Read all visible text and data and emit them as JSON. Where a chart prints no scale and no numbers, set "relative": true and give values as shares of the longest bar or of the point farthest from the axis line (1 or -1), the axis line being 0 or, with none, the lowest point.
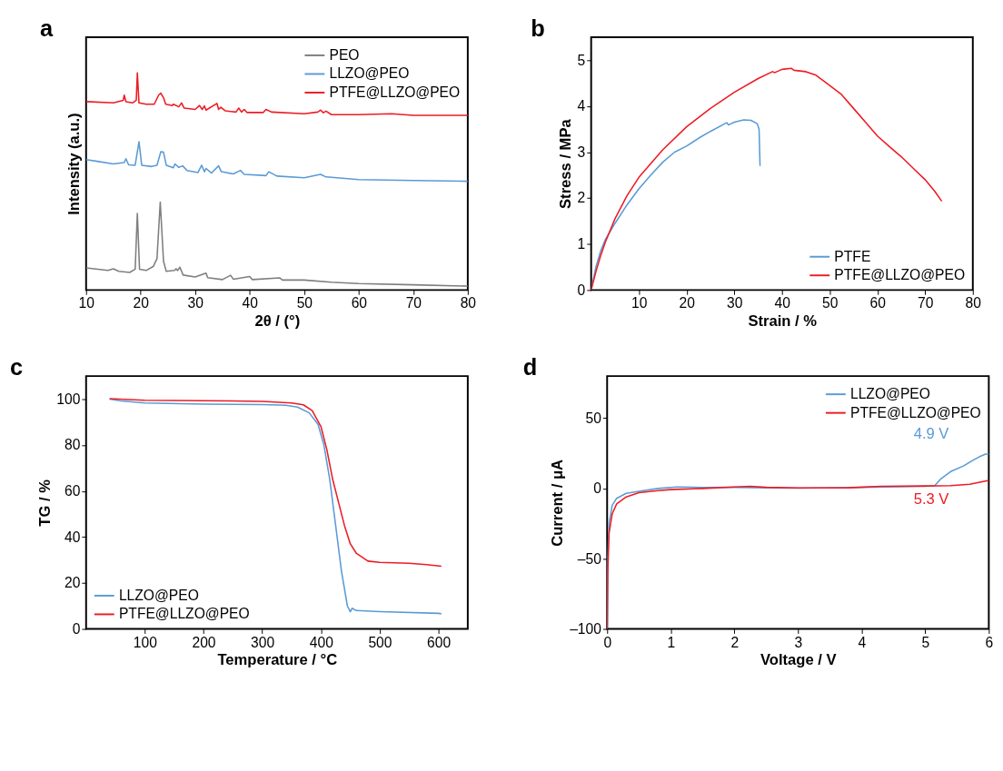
{
  "chart_data": [
    {
      "type": "line",
      "title": "a",
      "xlabel": "2θ / (°)",
      "ylabel": "Intensity (a.u.)",
      "relative": true,
      "legend": "top right",
      "grid": false,
      "xlim": [
        10,
        80
      ],
      "xticks": [
        10,
        20,
        30,
        40,
        50,
        60,
        70,
        80
      ],
      "series": [
        {
          "name": "PEO",
          "color": "#7f7f7f",
          "x": [
            10,
            14,
            15,
            16,
            18,
            19,
            19.4,
            19.8,
            21,
            22.3,
            23,
            23.6,
            24.2,
            24.7,
            26.2,
            26.5,
            26.8,
            27.2,
            27.8,
            30,
            32,
            32.3,
            35,
            36.5,
            37,
            40,
            40.5,
            45.5,
            46,
            50,
            55,
            60,
            70,
            80
          ],
          "values": [
            0.102,
            0.09,
            0.098,
            0.086,
            0.081,
            0.096,
            0.353,
            0.096,
            0.09,
            0.108,
            0.144,
            0.405,
            0.132,
            0.086,
            0.09,
            0.098,
            0.09,
            0.105,
            0.069,
            0.06,
            0.078,
            0.057,
            0.048,
            0.068,
            0.05,
            0.062,
            0.048,
            0.056,
            0.046,
            0.046,
            0.036,
            0.03,
            0.024,
            0.018
          ]
        },
        {
          "name": "LLZO@PEO",
          "color": "#5b9bd5",
          "x": [
            10,
            12,
            15,
            17,
            17.3,
            17.8,
            19,
            19.7,
            20.2,
            22,
            23,
            23.7,
            24.2,
            24.7,
            26,
            26.3,
            27,
            27.7,
            28.5,
            30.5,
            31.2,
            31.7,
            32,
            33,
            34.3,
            34.8,
            37,
            38.3,
            39,
            43,
            43.5,
            45,
            50,
            53,
            54,
            57,
            60,
            70,
            80
          ],
          "values": [
            0.601,
            0.593,
            0.581,
            0.587,
            0.605,
            0.577,
            0.575,
            0.683,
            0.575,
            0.569,
            0.575,
            0.637,
            0.635,
            0.575,
            0.563,
            0.581,
            0.565,
            0.572,
            0.551,
            0.541,
            0.575,
            0.545,
            0.56,
            0.539,
            0.572,
            0.545,
            0.535,
            0.551,
            0.533,
            0.527,
            0.545,
            0.525,
            0.517,
            0.533,
            0.521,
            0.515,
            0.509,
            0.505,
            0.501
          ]
        },
        {
          "name": "PTFE@LLZO@PEO",
          "color": "#ed1c24",
          "x": [
            10,
            15,
            16.8,
            17,
            17.3,
            18.5,
            19.2,
            19.4,
            19.7,
            21,
            22.5,
            23.3,
            23.7,
            24.2,
            24.6,
            25.8,
            26,
            27,
            27.5,
            28,
            30,
            30.8,
            31.3,
            31.7,
            32,
            34,
            34.3,
            34.7,
            35.5,
            37.5,
            38,
            38.5,
            39,
            39.5,
            42.5,
            43,
            44,
            50,
            52.5,
            53,
            53.5,
            54,
            55,
            60,
            66,
            70,
            80
          ],
          "values": [
            0.868,
            0.862,
            0.874,
            0.898,
            0.868,
            0.862,
            0.874,
            1,
            0.862,
            0.856,
            0.856,
            0.898,
            0.907,
            0.886,
            0.856,
            0.85,
            0.856,
            0.844,
            0.862,
            0.838,
            0.832,
            0.85,
            0.832,
            0.848,
            0.829,
            0.86,
            0.832,
            0.842,
            0.826,
            0.82,
            0.838,
            0.82,
            0.832,
            0.818,
            0.818,
            0.832,
            0.82,
            0.812,
            0.82,
            0.829,
            0.817,
            0.824,
            0.808,
            0.808,
            0.812,
            0.805,
            0.805
          ]
        }
      ]
    },
    {
      "type": "line",
      "title": "b",
      "xlabel": "Strain / %",
      "ylabel": "Stress / MPa",
      "legend": "bottom right",
      "grid": false,
      "xlim": [
        0,
        80
      ],
      "xticks": [
        10,
        20,
        30,
        40,
        50,
        60,
        70,
        80
      ],
      "ylim": [
        0,
        5.5
      ],
      "yticks": [
        0,
        1,
        2,
        3,
        4,
        5
      ],
      "series": [
        {
          "name": "PTFE",
          "color": "#5b9bd5",
          "x": [
            0,
            1,
            2,
            3,
            5,
            7.5,
            10,
            12.5,
            15,
            17.5,
            20,
            22.5,
            25,
            28.4,
            28.8,
            30,
            32,
            33.5,
            34.8,
            35.2,
            35.4
          ],
          "values": [
            0,
            0.5,
            0.85,
            1.1,
            1.45,
            1.85,
            2.2,
            2.5,
            2.78,
            3.0,
            3.13,
            3.3,
            3.45,
            3.64,
            3.59,
            3.65,
            3.7,
            3.69,
            3.62,
            3.5,
            2.7
          ]
        },
        {
          "name": "PTFE@LLZO@PEO",
          "color": "#ed1c24",
          "x": [
            0,
            1,
            2,
            3,
            5,
            7.5,
            10,
            15,
            20,
            25,
            30,
            35,
            38,
            38.5,
            40,
            42,
            42.5,
            45,
            47,
            50,
            52.5,
            55,
            57.5,
            60,
            62.5,
            65,
            67.5,
            70,
            72,
            73.5
          ],
          "values": [
            0,
            0.4,
            0.75,
            1.05,
            1.55,
            2.05,
            2.45,
            3.05,
            3.55,
            3.95,
            4.3,
            4.6,
            4.75,
            4.73,
            4.8,
            4.82,
            4.78,
            4.75,
            4.68,
            4.45,
            4.25,
            3.95,
            3.65,
            3.35,
            3.12,
            2.9,
            2.65,
            2.4,
            2.15,
            1.93
          ]
        }
      ]
    },
    {
      "type": "line",
      "title": "c",
      "xlabel": "Temperature / °C",
      "ylabel": "TG / %",
      "legend": "bottom left",
      "grid": false,
      "xlim": [
        0,
        650
      ],
      "xticks": [
        100,
        200,
        300,
        400,
        500,
        600
      ],
      "ylim": [
        0,
        110
      ],
      "yticks": [
        0,
        20,
        40,
        60,
        80,
        100
      ],
      "series": [
        {
          "name": "LLZO@PEO",
          "color": "#5b9bd5",
          "x": [
            40,
            60,
            100,
            200,
            300,
            340,
            360,
            380,
            395,
            405,
            415,
            425,
            435,
            445,
            450,
            453,
            460,
            500,
            600,
            605
          ],
          "values": [
            100,
            99.2,
            98.3,
            97.8,
            97.6,
            97.3,
            96.5,
            94,
            89,
            80,
            65,
            45,
            25,
            10,
            7.5,
            9,
            8,
            7.5,
            6.8,
            6.6
          ]
        },
        {
          "name": "PTFE@LLZO@PEO",
          "color": "#ed1c24",
          "x": [
            40,
            100,
            200,
            300,
            350,
            370,
            385,
            400,
            410,
            420,
            430,
            440,
            450,
            460,
            480,
            500,
            550,
            580,
            605
          ],
          "values": [
            100.2,
            99.5,
            99.3,
            99,
            98.3,
            97.5,
            95,
            88,
            78,
            65,
            55,
            45,
            37,
            33,
            29.5,
            29,
            28.6,
            28,
            27.3
          ]
        }
      ]
    },
    {
      "type": "line",
      "title": "d",
      "xlabel": "Voltage / V",
      "ylabel": "Current / μA",
      "legend": "top right",
      "grid": false,
      "xlim": [
        0,
        6
      ],
      "xticks": [
        0,
        1,
        2,
        3,
        4,
        5,
        6
      ],
      "ylim": [
        -100,
        80
      ],
      "yticks": [
        {
          "value": -100,
          "label": "–100"
        },
        {
          "value": -50,
          "label": "–50"
        },
        0,
        50
      ],
      "annotations": [
        "4.9 V",
        "5.3 V"
      ],
      "series": [
        {
          "name": "LLZO@PEO",
          "color": "#5b9bd5",
          "x": [
            0,
            0.01,
            0.03,
            0.08,
            0.15,
            0.3,
            0.5,
            0.8,
            1.1,
            1.5,
            2,
            2.5,
            3,
            4,
            5,
            5.15,
            5.25,
            5.4,
            5.6,
            5.75,
            5.85,
            5.95,
            6
          ],
          "values": [
            -100,
            -50,
            -25,
            -12,
            -7,
            -3.5,
            -2,
            0,
            1,
            0.7,
            0.8,
            0.5,
            0.3,
            0.8,
            1.5,
            2,
            7,
            12,
            16,
            20,
            22.5,
            24.5,
            24.5
          ]
        },
        {
          "name": "PTFE@LLZO@PEO",
          "color": "#ed1c24",
          "x": [
            0,
            0.01,
            0.03,
            0.08,
            0.15,
            0.3,
            0.5,
            0.8,
            1,
            1.5,
            2,
            2.25,
            2.5,
            3,
            3.8,
            4.3,
            5,
            5.4,
            5.7,
            6
          ],
          "values": [
            -100,
            -60,
            -32,
            -18,
            -11,
            -6,
            -3,
            -1.5,
            -0.8,
            0,
            1,
            1.5,
            0.8,
            0.4,
            0.5,
            1.5,
            1.8,
            2,
            3,
            5.8
          ]
        }
      ]
    }
  ]
}
